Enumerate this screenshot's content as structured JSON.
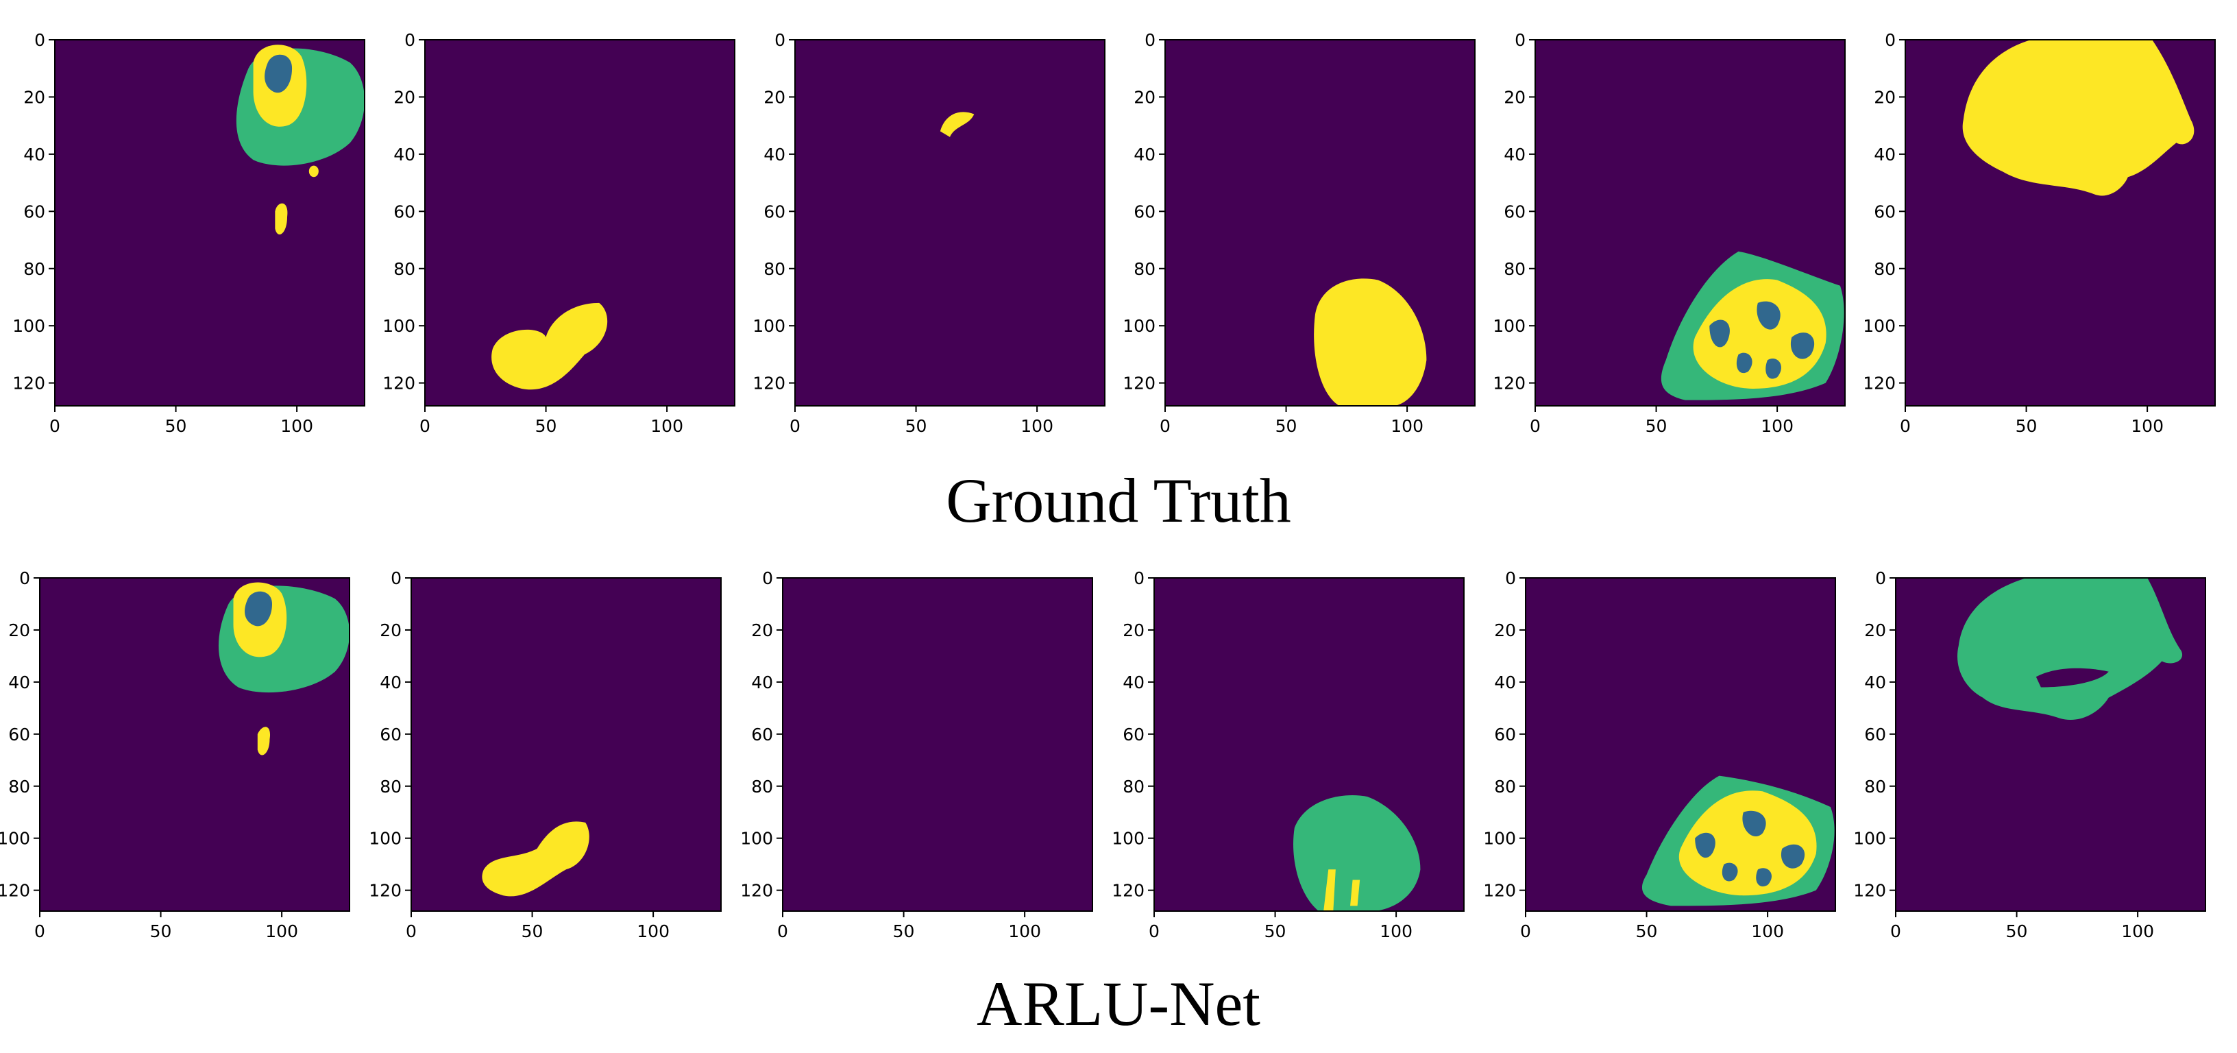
{
  "colors": {
    "background": "#440154",
    "class_green": "#35b779",
    "class_yellow": "#fde725",
    "class_blue": "#31688e",
    "axis": "#000000"
  },
  "captions": {
    "top": "Ground Truth",
    "bottom": "ARLU-Net"
  },
  "axes": {
    "x_ticks": [
      "0",
      "50",
      "100"
    ],
    "y_ticks": [
      "0",
      "20",
      "40",
      "60",
      "80",
      "100",
      "120"
    ]
  },
  "rows": [
    {
      "label": "Ground Truth",
      "panels": [
        {
          "name": "gt-1",
          "content": "green region with yellow ring and blue core at top right, small yellow blob below"
        },
        {
          "name": "gt-2",
          "content": "yellow blob at bottom left"
        },
        {
          "name": "gt-3",
          "content": "small yellow mark near top center"
        },
        {
          "name": "gt-4",
          "content": "yellow blob at bottom center"
        },
        {
          "name": "gt-5",
          "content": "green, yellow and blue mixed region at bottom right"
        },
        {
          "name": "gt-6",
          "content": "large yellow region at top"
        }
      ]
    },
    {
      "label": "ARLU-Net",
      "panels": [
        {
          "name": "pred-1",
          "content": "green region with yellow ring and blue core at top right, small yellow blob below"
        },
        {
          "name": "pred-2",
          "content": "yellow blob at bottom left"
        },
        {
          "name": "pred-3",
          "content": "empty"
        },
        {
          "name": "pred-4",
          "content": "green blob with yellow streaks at bottom center"
        },
        {
          "name": "pred-5",
          "content": "green, yellow and blue mixed region at bottom right"
        },
        {
          "name": "pred-6",
          "content": "large green region at top"
        }
      ]
    }
  ]
}
